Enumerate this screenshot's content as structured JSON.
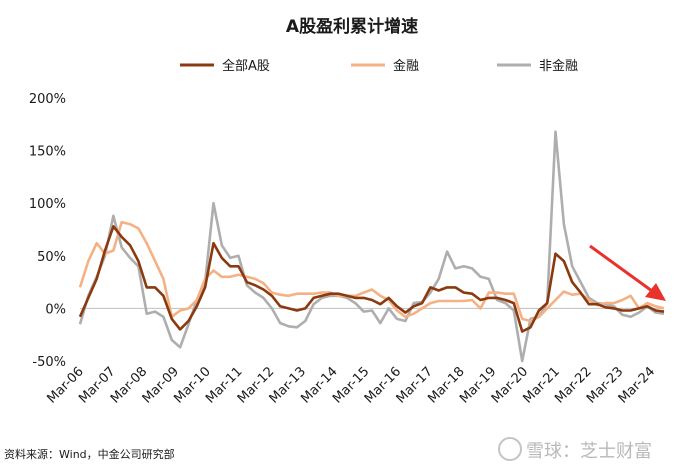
{
  "chart_data": {
    "type": "line",
    "title": "A股盈利累计增速",
    "xlabel": "",
    "ylabel": "",
    "ylim": [
      -50,
      200
    ],
    "yticks": [
      "200%",
      "150%",
      "100%",
      "50%",
      "0%",
      "-50%"
    ],
    "xticks": [
      "Mar-06",
      "Mar-07",
      "Mar-08",
      "Mar-09",
      "Mar-10",
      "Mar-11",
      "Mar-12",
      "Mar-13",
      "Mar-14",
      "Mar-15",
      "Mar-16",
      "Mar-17",
      "Mar-18",
      "Mar-19",
      "Mar-20",
      "Mar-21",
      "Mar-22",
      "Mar-23",
      "Mar-24"
    ],
    "legend_position": "top",
    "grid": false,
    "series": [
      {
        "name": "全部A股",
        "color": "#8B3A0F",
        "values": [
          -8,
          10,
          28,
          55,
          78,
          68,
          60,
          45,
          20,
          20,
          12,
          -10,
          -20,
          -12,
          2,
          20,
          62,
          48,
          40,
          40,
          25,
          22,
          18,
          12,
          2,
          0,
          -2,
          0,
          10,
          12,
          14,
          14,
          12,
          10,
          10,
          8,
          4,
          10,
          2,
          -4,
          2,
          5,
          20,
          17,
          20,
          20,
          15,
          14,
          8,
          10,
          10,
          8,
          5,
          -22,
          -18,
          -2,
          5,
          52,
          45,
          25,
          15,
          4,
          4,
          1,
          0,
          -2,
          -2,
          0,
          2,
          -2,
          -3
        ]
      },
      {
        "name": "金融",
        "color": "#F4B183",
        "values": [
          20,
          45,
          62,
          52,
          55,
          82,
          80,
          76,
          62,
          45,
          28,
          -8,
          -2,
          0,
          8,
          28,
          36,
          30,
          30,
          32,
          30,
          28,
          24,
          15,
          13,
          12,
          14,
          14,
          14,
          15,
          15,
          12,
          12,
          12,
          15,
          18,
          12,
          8,
          -2,
          -8,
          -5,
          0,
          5,
          7,
          7,
          7,
          7,
          8,
          0,
          15,
          15,
          14,
          14,
          -10,
          -12,
          -8,
          0,
          8,
          16,
          13,
          14,
          8,
          3,
          5,
          5,
          8,
          12,
          0,
          5,
          2,
          0
        ]
      },
      {
        "name": "非金融",
        "color": "#AEAEAE",
        "values": [
          -15,
          12,
          30,
          50,
          88,
          58,
          48,
          40,
          -5,
          -3,
          -8,
          -30,
          -37,
          -15,
          8,
          25,
          100,
          60,
          48,
          50,
          22,
          15,
          10,
          0,
          -14,
          -17,
          -18,
          -12,
          4,
          10,
          12,
          12,
          10,
          5,
          -3,
          -2,
          -14,
          0,
          -10,
          -12,
          5,
          6,
          15,
          28,
          54,
          38,
          40,
          38,
          30,
          28,
          8,
          5,
          -2,
          -50,
          -10,
          -8,
          5,
          168,
          80,
          40,
          25,
          10,
          5,
          4,
          2,
          -6,
          -8,
          -4,
          2,
          -4,
          -5
        ]
      }
    ]
  },
  "source": "资料来源：Wind，中金公司研究部",
  "watermark": "雪球：芝士财富",
  "annotation_arrow_color": "#E8322B"
}
